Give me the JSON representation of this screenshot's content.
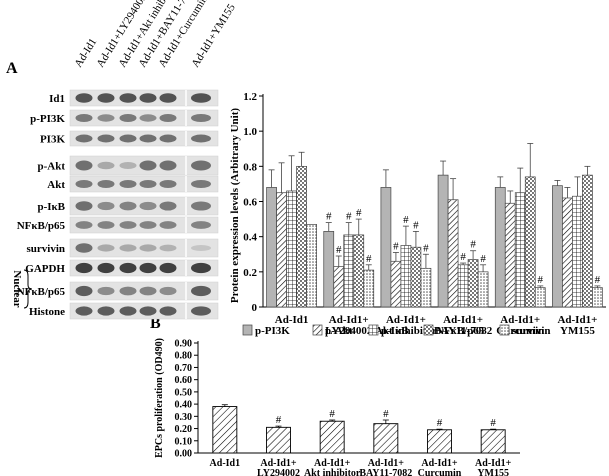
{
  "panel_a_label": "A",
  "panel_b_label": "B",
  "blot": {
    "column_labels": [
      "Ad-Id1",
      "Ad-Id1+LY294002",
      "Ad-Id1+Akt inhibitor",
      "Ad-Id1+BAY11-7082",
      "Ad-Id1+Curcumin",
      "Ad-Id1+YM155"
    ],
    "rows": [
      {
        "label": "Id1",
        "intensity": [
          0.75,
          0.75,
          0.75,
          0.75,
          0.75,
          0.75
        ]
      },
      {
        "label": "p-PI3K",
        "intensity": [
          0.55,
          0.45,
          0.55,
          0.45,
          0.55,
          0.55
        ]
      },
      {
        "label": "PI3K",
        "intensity": [
          0.6,
          0.6,
          0.6,
          0.6,
          0.6,
          0.6
        ]
      },
      {
        "label": "p-Akt",
        "intensity": [
          0.6,
          0.3,
          0.25,
          0.6,
          0.6,
          0.6
        ]
      },
      {
        "label": "Akt",
        "intensity": [
          0.55,
          0.55,
          0.55,
          0.55,
          0.55,
          0.55
        ]
      },
      {
        "label": "p-IκB",
        "intensity": [
          0.6,
          0.45,
          0.5,
          0.45,
          0.55,
          0.55
        ]
      },
      {
        "label": "NFκB/p65",
        "intensity": [
          0.5,
          0.5,
          0.5,
          0.5,
          0.5,
          0.5
        ]
      },
      {
        "label": "survivin",
        "intensity": [
          0.6,
          0.3,
          0.3,
          0.3,
          0.25,
          0.15
        ]
      },
      {
        "label": "GAPDH",
        "intensity": [
          0.85,
          0.85,
          0.85,
          0.85,
          0.85,
          0.85
        ]
      },
      {
        "label": "NFκB/p65",
        "intensity": [
          0.7,
          0.45,
          0.5,
          0.5,
          0.45,
          0.7
        ]
      },
      {
        "label": "Histone",
        "intensity": [
          0.7,
          0.7,
          0.7,
          0.7,
          0.7,
          0.7
        ]
      }
    ],
    "nuclear_label": "Nuclear"
  },
  "chart_data": [
    {
      "type": "bar",
      "ylabel": "Protein expression levels (Arbitrary Unit)",
      "ylim": [
        0,
        1.2
      ],
      "yticks": [
        "0",
        "0.2",
        "0.4",
        "0.6",
        "0.8",
        "1.0",
        "1.2"
      ],
      "categories": [
        [
          "Ad-Id1"
        ],
        [
          "Ad-Id1+",
          "LY294002"
        ],
        [
          "Ad-Id1+",
          "Akt inhibitor"
        ],
        [
          "Ad-Id1+",
          "BAY11-7082"
        ],
        [
          "Ad-Id1+",
          "Curcumin"
        ],
        [
          "Ad-Id1+",
          "YM155"
        ]
      ],
      "series": [
        {
          "name": "p-PI3K",
          "values": [
            0.68,
            0.43,
            0.68,
            0.75,
            0.68,
            0.69
          ],
          "errors": [
            0.1,
            0.05,
            0.1,
            0.08,
            0.06,
            0.03
          ],
          "sig": [
            false,
            true,
            false,
            false,
            false,
            false
          ]
        },
        {
          "name": "p-Akt",
          "values": [
            0.65,
            0.23,
            0.26,
            0.61,
            0.59,
            0.62
          ],
          "errors": [
            0.17,
            0.06,
            0.05,
            0.12,
            0.07,
            0.06
          ],
          "sig": [
            false,
            true,
            true,
            false,
            false,
            false
          ]
        },
        {
          "name": "p-IκB",
          "values": [
            0.66,
            0.41,
            0.35,
            0.24,
            0.65,
            0.63
          ],
          "errors": [
            0.2,
            0.07,
            0.11,
            0.01,
            0.14,
            0.11
          ],
          "sig": [
            false,
            true,
            true,
            true,
            false,
            false
          ]
        },
        {
          "name": "NFκB/p65",
          "values": [
            0.8,
            0.41,
            0.34,
            0.27,
            0.74,
            0.75
          ],
          "errors": [
            0.08,
            0.09,
            0.09,
            0.05,
            0.19,
            0.05
          ],
          "sig": [
            false,
            true,
            true,
            true,
            false,
            false
          ]
        },
        {
          "name": "survivin",
          "values": [
            0.47,
            0.21,
            0.22,
            0.2,
            0.11,
            0.11
          ],
          "errors": [
            0.0,
            0.03,
            0.08,
            0.04,
            0.01,
            0.01
          ],
          "sig": [
            false,
            true,
            true,
            true,
            true,
            true
          ]
        }
      ],
      "legend_position": "bottom",
      "sig_symbol": "#"
    },
    {
      "type": "bar",
      "ylabel": "EPCs proliferation (OD490)",
      "ylim": [
        0,
        0.9
      ],
      "yticks": [
        "0.00",
        "0.10",
        "0.20",
        "0.30",
        "0.40",
        "0.50",
        "0.60",
        "0.70",
        "0.80",
        "0.90"
      ],
      "categories": [
        [
          "Ad-Id1"
        ],
        [
          "Ad-Id1+",
          "LY294002"
        ],
        [
          "Ad-Id1+",
          "Akt inhibitor"
        ],
        [
          "Ad-Id1+",
          "BAY11-7082"
        ],
        [
          "Ad-Id1+",
          "Curcumin"
        ],
        [
          "Ad-Id1+",
          "YM155"
        ]
      ],
      "values": [
        0.38,
        0.21,
        0.26,
        0.24,
        0.19,
        0.19
      ],
      "errors": [
        0.015,
        0.01,
        0.01,
        0.03,
        0.005,
        0.005
      ],
      "sig": [
        false,
        true,
        true,
        true,
        true,
        true
      ],
      "sig_symbol": "#"
    }
  ]
}
